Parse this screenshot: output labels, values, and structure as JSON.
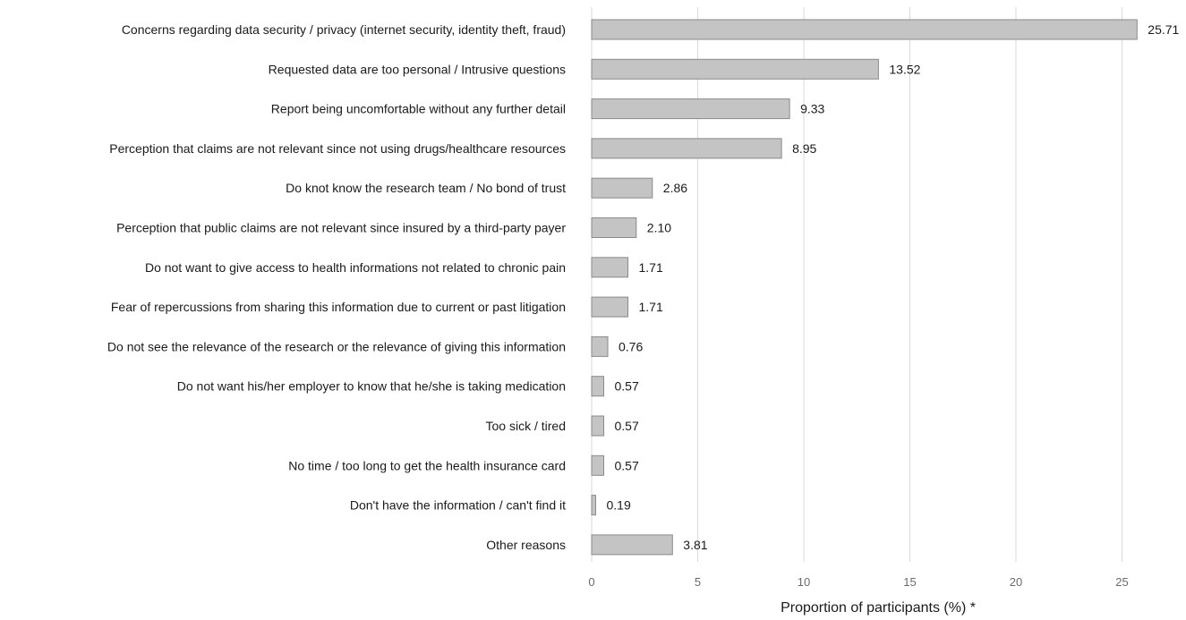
{
  "chart_data": {
    "type": "bar",
    "orientation": "horizontal",
    "categories": [
      "Concerns regarding data security / privacy (internet security, identity theft, fraud)",
      "Requested data are too personal / Intrusive questions",
      "Report being uncomfortable without any further detail",
      "Perception that claims are not relevant since not using drugs/healthcare resources",
      "Do knot know the research team / No bond of trust",
      "Perception that public claims are not relevant since insured by a third-party payer",
      "Do not want to give access to health informations not related to chronic pain",
      "Fear of repercussions from sharing this information due to current or past litigation",
      "Do not see the relevance of the research or the relevance of giving this information",
      "Do not want his/her employer to know that he/she is taking medication",
      "Too sick / tired",
      "No time / too long to get the health insurance card",
      "Don't have the information / can't find it",
      "Other reasons"
    ],
    "values": [
      25.71,
      13.52,
      9.33,
      8.95,
      2.86,
      2.1,
      1.71,
      1.71,
      0.76,
      0.57,
      0.57,
      0.57,
      0.19,
      3.81
    ],
    "value_labels": [
      "25.71",
      "13.52",
      "9.33",
      "8.95",
      "2.86",
      "2.10",
      "1.71",
      "1.71",
      "0.76",
      "0.57",
      "0.57",
      "0.57",
      "0.19",
      "3.81"
    ],
    "xlim": [
      0,
      27
    ],
    "xticks": [
      0,
      5,
      10,
      15,
      20,
      25
    ],
    "xtick_labels": [
      "0",
      "5",
      "10",
      "15",
      "20",
      "25"
    ],
    "xlabel": "Proportion of participants (%) *",
    "ylabel": "",
    "title": "",
    "grid": "vertical",
    "legend": "none",
    "colors": {
      "bar_fill": "#c4c4c4",
      "bar_stroke": "#8a8a8a",
      "grid": "#d9d9d9",
      "text": "#1a1a1a",
      "tick_text": "#6b6b6b"
    }
  }
}
